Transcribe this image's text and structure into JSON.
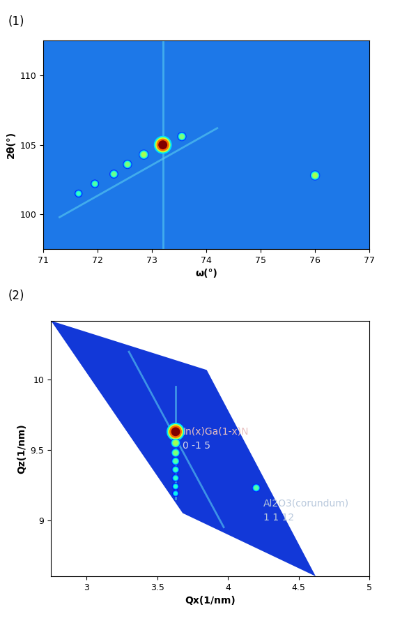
{
  "chart_data": [
    {
      "type": "scatter",
      "title": "(1)",
      "x_label": "ω(°)",
      "y_label": "2θ(°)",
      "xlim": [
        71,
        77
      ],
      "xticks": [
        71,
        72,
        73,
        74,
        75,
        76,
        77
      ],
      "ylim": [
        97.5,
        112.5
      ],
      "yticks": [
        100,
        105,
        110
      ],
      "grid": false,
      "streaks": [
        {
          "x": [
            73.2,
            73.2
          ],
          "y": [
            97.5,
            112.5
          ]
        },
        {
          "x": [
            71.3,
            74.2
          ],
          "y": [
            99.8,
            106.2
          ]
        }
      ],
      "x": [
        73.2,
        72.85,
        72.55,
        72.3,
        71.95,
        71.65,
        73.55,
        76.0
      ],
      "y": [
        105.0,
        104.3,
        103.6,
        102.9,
        102.2,
        101.5,
        105.6,
        102.8
      ],
      "intensity": [
        1.0,
        0.55,
        0.5,
        0.48,
        0.45,
        0.42,
        0.5,
        0.55
      ]
    },
    {
      "type": "scatter",
      "title": "(2)",
      "x_label": "Qx(1/nm)",
      "y_label": "Qz(1/nm)",
      "xlim": [
        2.75,
        5.0
      ],
      "xticks": [
        3,
        3.5,
        4,
        4.5,
        5
      ],
      "ylim": [
        8.6,
        10.42
      ],
      "yticks": [
        9,
        9.5,
        10
      ],
      "grid": false,
      "scan_area": [
        [
          2.75,
          10.42
        ],
        [
          3.85,
          10.07
        ],
        [
          4.62,
          8.6
        ],
        [
          3.68,
          9.05
        ]
      ],
      "streaks": [
        {
          "x": [
            3.3,
            3.97
          ],
          "y": [
            10.2,
            8.95
          ]
        },
        {
          "x": [
            3.63,
            3.63
          ],
          "y": [
            9.15,
            9.95
          ]
        }
      ],
      "x": [
        3.63,
        3.63,
        3.63,
        3.63,
        3.63,
        3.63,
        3.63,
        3.63,
        4.2
      ],
      "y": [
        9.63,
        9.55,
        9.48,
        9.42,
        9.36,
        9.3,
        9.24,
        9.19,
        9.23
      ],
      "intensity": [
        1.0,
        0.55,
        0.5,
        0.45,
        0.42,
        0.4,
        0.38,
        0.36,
        0.45
      ],
      "annotations": [
        {
          "text": "In(x)Ga(1-x)N",
          "x": 3.68,
          "y": 9.63,
          "color": "#e8c0c0"
        },
        {
          "text": "0 -1 5",
          "x": 3.68,
          "y": 9.53,
          "color": "#d8d8e8"
        },
        {
          "text": "Al2O3(corundum)",
          "x": 4.25,
          "y": 9.12,
          "color": "#b8c8dc"
        },
        {
          "text": "1 1 12",
          "x": 4.25,
          "y": 9.02,
          "color": "#b8c8dc"
        }
      ]
    }
  ]
}
